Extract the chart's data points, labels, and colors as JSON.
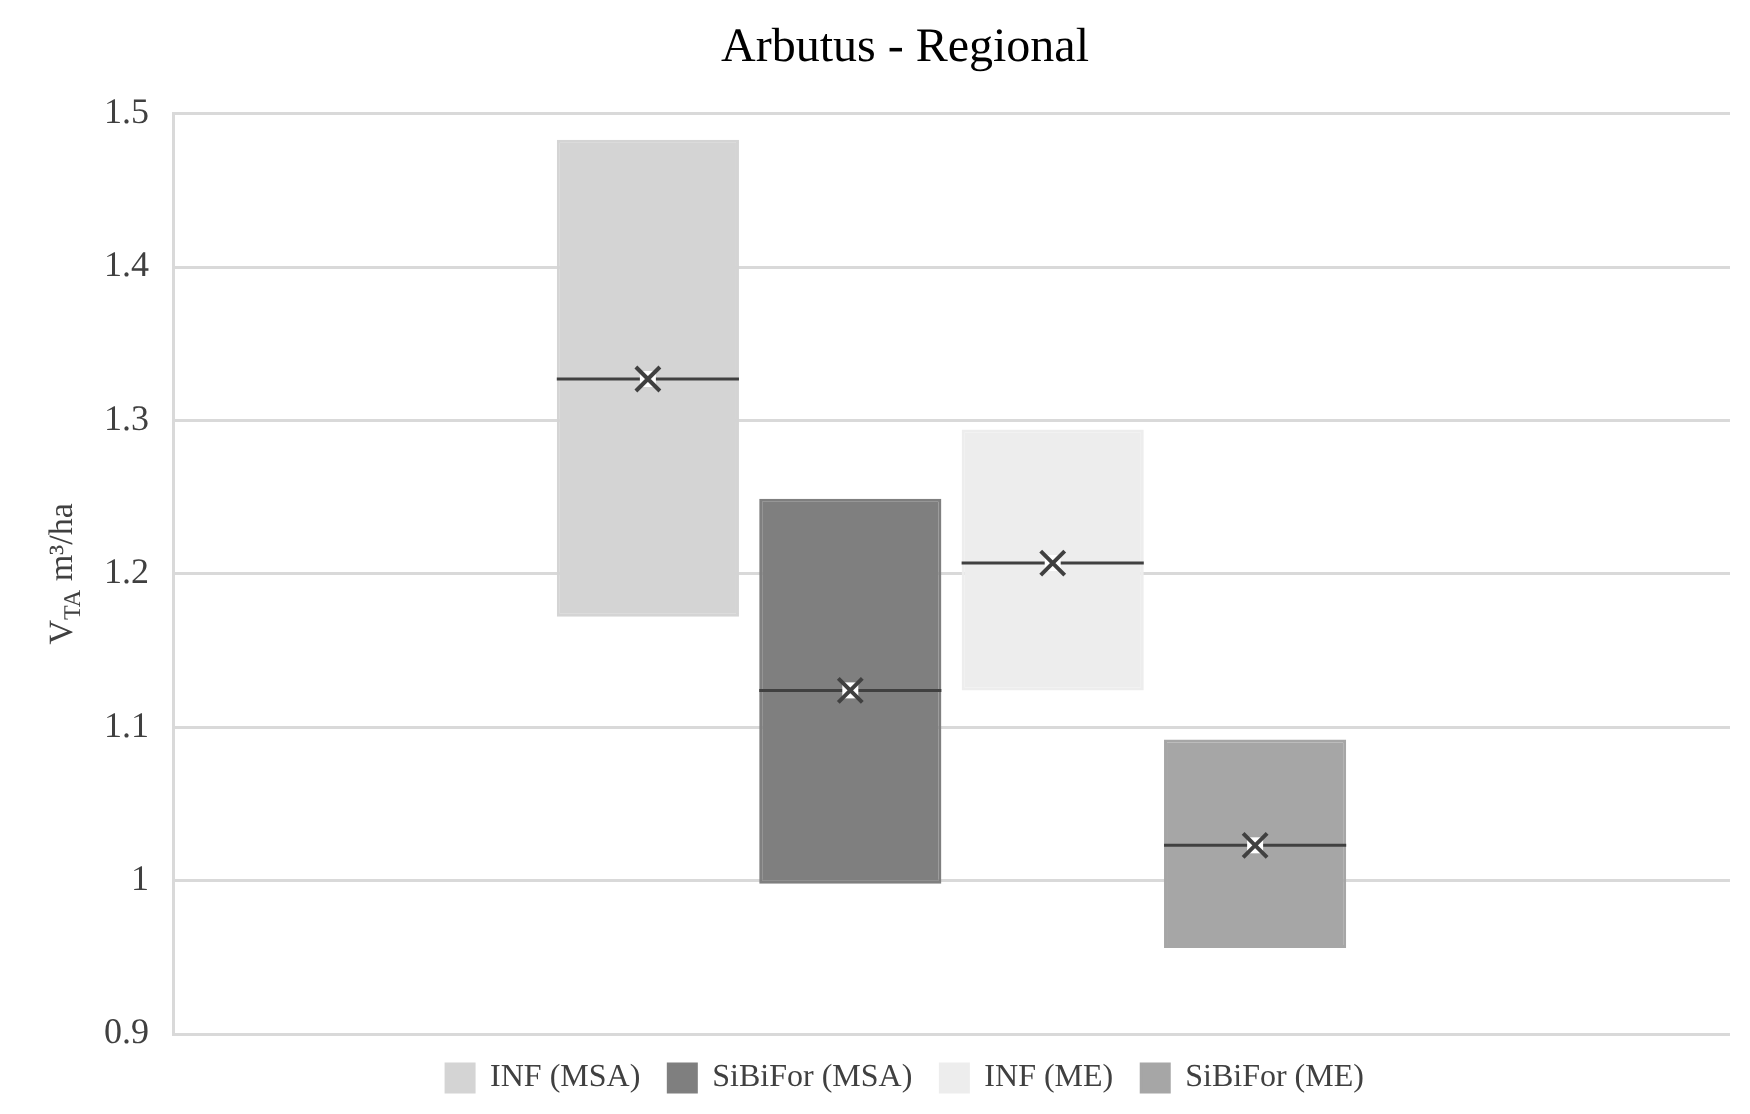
{
  "chart_data": {
    "type": "box",
    "title": "Arbutus - Regional",
    "ylabel": "V$_{TA}$ m³/ha",
    "categories": [
      null
    ],
    "ylim": [
      0.9,
      1.5
    ],
    "yticks": [
      0.9,
      1,
      1.1,
      1.2,
      1.3,
      1.4,
      1.5
    ],
    "grid": "y",
    "legend": "bottom",
    "tick_labels": "y",
    "series": [
      {
        "name": "INF (MSA)",
        "color": "#d4d4d4",
        "boxes": [
          {
            "low": 1.172,
            "q1": 1.172,
            "median": 1.327,
            "q3": 1.483,
            "high": 1.483,
            "mean": 1.327
          }
        ]
      },
      {
        "name": "SiBiFor (MSA)",
        "color": "#7f7f7f",
        "boxes": [
          {
            "low": 0.998,
            "q1": 0.998,
            "median": 1.124,
            "q3": 1.249,
            "high": 1.249,
            "mean": 1.124
          }
        ]
      },
      {
        "name": "INF (ME)",
        "color": "#ededed",
        "boxes": [
          {
            "low": 1.124,
            "q1": 1.124,
            "median": 1.207,
            "q3": 1.294,
            "high": 1.294,
            "mean": 1.207
          }
        ]
      },
      {
        "name": "SiBiFor (ME)",
        "color": "#a6a6a6",
        "boxes": [
          {
            "low": 0.956,
            "q1": 0.956,
            "median": 1.023,
            "q3": 1.092,
            "high": 1.092,
            "mean": 1.023
          }
        ]
      }
    ]
  }
}
